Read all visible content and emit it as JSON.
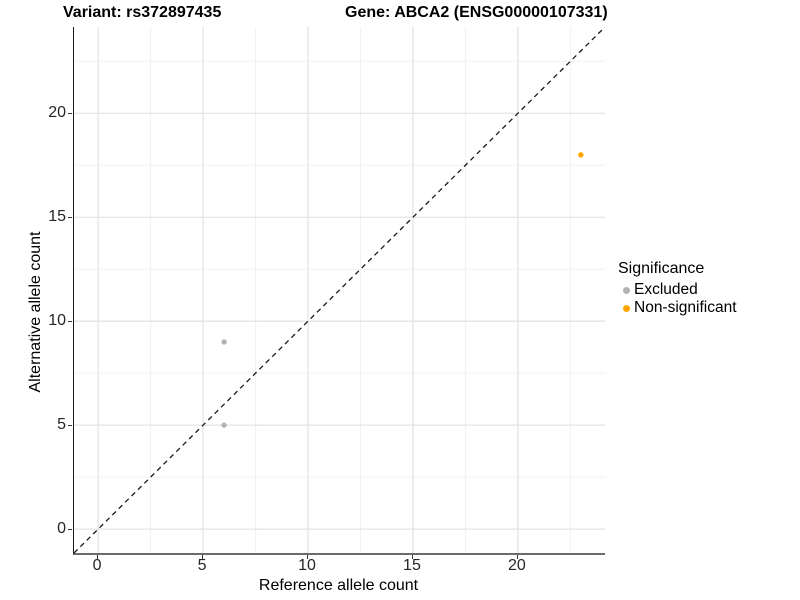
{
  "chart_data": {
    "type": "scatter",
    "title_left": "Variant: rs372897435",
    "title_right": "Gene: ABCA2 (ENSG00000107331)",
    "xlabel": "Reference allele count",
    "ylabel": "Alternative allele count",
    "xlim": [
      -1.15,
      24.15
    ],
    "ylim": [
      -1.15,
      24.15
    ],
    "x_major_ticks": [
      0,
      5,
      10,
      15,
      20
    ],
    "y_major_ticks": [
      0,
      5,
      10,
      15,
      20
    ],
    "x_minor_ticks": [
      2.5,
      7.5,
      12.5,
      17.5,
      22.5
    ],
    "y_minor_ticks": [
      2.5,
      7.5,
      12.5,
      17.5,
      22.5
    ],
    "grid": true,
    "reference_line": {
      "type": "identity",
      "slope": 1,
      "intercept": 0,
      "style": "dashed",
      "color": "#1a1a1a"
    },
    "series": [
      {
        "name": "Excluded",
        "color": "#B3B3B3",
        "points": [
          {
            "x": 6,
            "y": 9
          },
          {
            "x": 6,
            "y": 5
          }
        ]
      },
      {
        "name": "Non-significant",
        "color": "#FFA500",
        "points": [
          {
            "x": 23,
            "y": 18
          }
        ]
      }
    ],
    "legend": {
      "title": "Significance",
      "position": "right",
      "entries": [
        "Excluded",
        "Non-significant"
      ]
    },
    "colors": {
      "grid_major": "#E4E4E4",
      "grid_minor": "#F1F1F1",
      "axis_text": "#262626",
      "excluded_point": "#B3B3B3",
      "non_significant_point": "#FFA500"
    }
  }
}
